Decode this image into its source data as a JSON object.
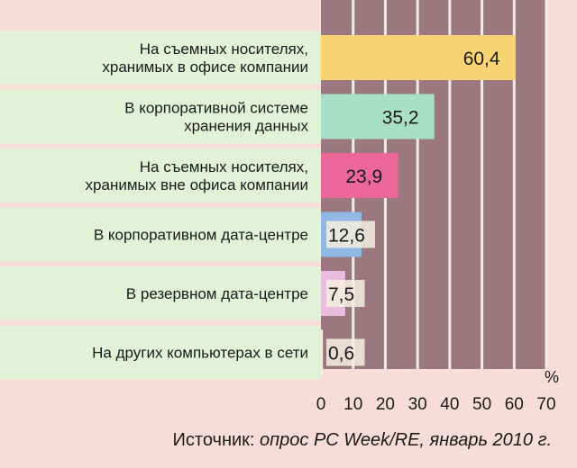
{
  "chart_data": {
    "type": "bar",
    "orientation": "horizontal",
    "categories": [
      [
        "На съемных носителях,",
        "хранимых в офисе компании"
      ],
      [
        "В корпоративной системе",
        "хранения данных"
      ],
      [
        "На съемных носителях,",
        "хранимых вне офиса компании"
      ],
      [
        "В корпоративном дата-центре"
      ],
      [
        "В резервном дата-центре"
      ],
      [
        "На других компьютерах в сети"
      ]
    ],
    "values": [
      60.4,
      35.2,
      23.9,
      12.6,
      7.5,
      0.6
    ],
    "value_labels": [
      "60,4",
      "35,2",
      "23,9",
      "12,6",
      "7,5",
      "0,6"
    ],
    "colors": [
      "#f9d472",
      "#a9dfc6",
      "#ec679a",
      "#8fb9e4",
      "#e9bde0",
      "#f6efe0"
    ],
    "xlim": [
      0,
      70
    ],
    "x_ticks": [
      0,
      10,
      20,
      30,
      40,
      50,
      60,
      70
    ],
    "unit": "%",
    "grid": true,
    "plot_background": "#9b7880",
    "label_band_color": "#e2f2d6",
    "background": "#f8dcd8"
  },
  "source": {
    "prefix": "Источник: ",
    "text": "опрос PC Week/RE, январь 2010 г."
  }
}
